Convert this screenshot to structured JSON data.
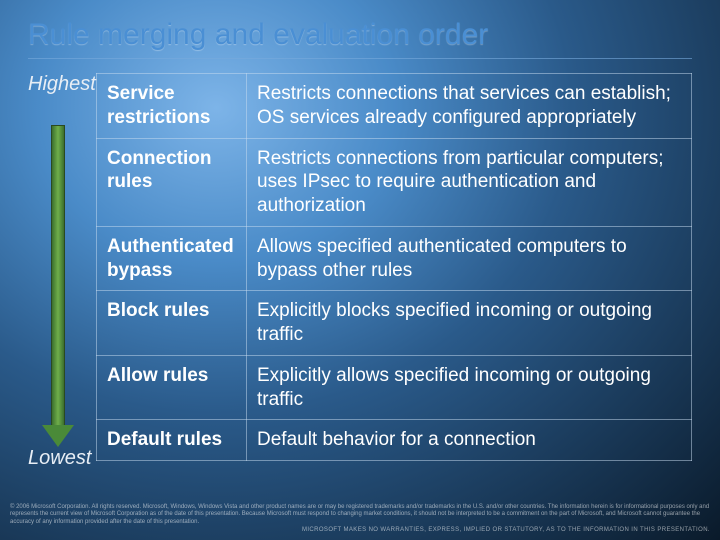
{
  "title": "Rule merging and evaluation order",
  "priority": {
    "high": "Highest",
    "low": "Lowest"
  },
  "arrow": {
    "fill_start": "#3b6f2e",
    "fill_mid": "#6fae4a",
    "head": "#4a8a38"
  },
  "rows": [
    {
      "name": "Service restrictions",
      "desc": "Restricts connections that services can establish; OS services already configured appropriately"
    },
    {
      "name": "Connection rules",
      "desc": "Restricts connections from particular computers; uses IPsec to require authentication and authorization"
    },
    {
      "name": "Authenticated bypass",
      "desc": "Allows specified authenticated computers to bypass other rules"
    },
    {
      "name": "Block rules",
      "desc": "Explicitly blocks specified incoming or outgoing traffic"
    },
    {
      "name": "Allow rules",
      "desc": "Explicitly allows specified incoming or outgoing traffic"
    },
    {
      "name": "Default rules",
      "desc": "Default behavior for a connection"
    }
  ],
  "footer": {
    "line1": "© 2006 Microsoft Corporation. All rights reserved. Microsoft, Windows, Windows Vista and other product names are or may be registered trademarks and/or trademarks in the U.S. and/or other countries. The information herein is for informational purposes only and represents the current view of Microsoft Corporation as of the date of this presentation. Because Microsoft must respond to changing market conditions, it should not be interpreted to be a commitment on the part of Microsoft, and Microsoft cannot guarantee the accuracy of any information provided after the date of this presentation.",
    "line2": "MICROSOFT MAKES NO WARRANTIES, EXPRESS, IMPLIED OR STATUTORY, AS TO THE INFORMATION IN THIS PRESENTATION."
  }
}
